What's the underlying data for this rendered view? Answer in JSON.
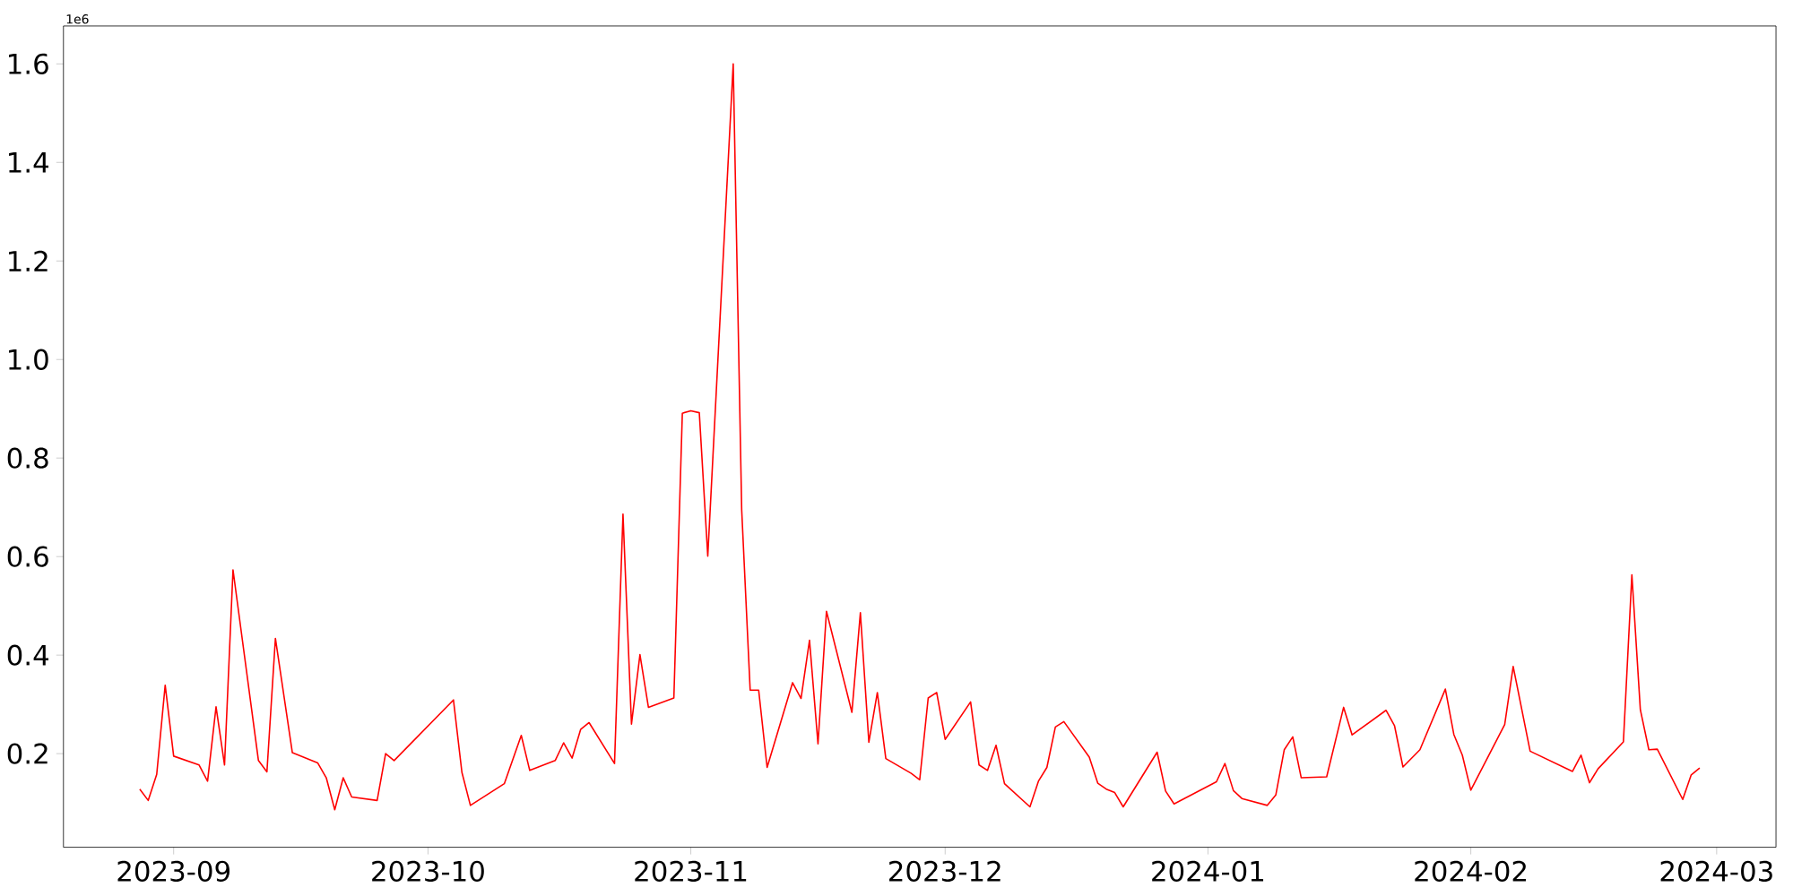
{
  "chart_data": {
    "type": "line",
    "annotations": [
      "1e6"
    ],
    "x": [
      "2023-08-28",
      "2023-08-29",
      "2023-08-30",
      "2023-08-31",
      "2023-09-01",
      "2023-09-04",
      "2023-09-05",
      "2023-09-06",
      "2023-09-07",
      "2023-09-08",
      "2023-09-11",
      "2023-09-12",
      "2023-09-13",
      "2023-09-15",
      "2023-09-18",
      "2023-09-19",
      "2023-09-20",
      "2023-09-21",
      "2023-09-22",
      "2023-09-25",
      "2023-09-26",
      "2023-09-27",
      "2023-10-04",
      "2023-10-05",
      "2023-10-06",
      "2023-10-10",
      "2023-10-12",
      "2023-10-13",
      "2023-10-16",
      "2023-10-17",
      "2023-10-18",
      "2023-10-19",
      "2023-10-20",
      "2023-10-23",
      "2023-10-24",
      "2023-10-25",
      "2023-10-26",
      "2023-10-27",
      "2023-10-30",
      "2023-10-31",
      "2023-11-01",
      "2023-11-02",
      "2023-11-03",
      "2023-11-06",
      "2023-11-07",
      "2023-11-08",
      "2023-11-09",
      "2023-11-10",
      "2023-11-13",
      "2023-11-14",
      "2023-11-15",
      "2023-11-16",
      "2023-11-17",
      "2023-11-20",
      "2023-11-21",
      "2023-11-22",
      "2023-11-23",
      "2023-11-24",
      "2023-11-27",
      "2023-11-28",
      "2023-11-29",
      "2023-11-30",
      "2023-12-01",
      "2023-12-04",
      "2023-12-05",
      "2023-12-06",
      "2023-12-07",
      "2023-12-08",
      "2023-12-11",
      "2023-12-12",
      "2023-12-13",
      "2023-12-14",
      "2023-12-15",
      "2023-12-18",
      "2023-12-19",
      "2023-12-20",
      "2023-12-21",
      "2023-12-22",
      "2023-12-26",
      "2023-12-27",
      "2023-12-28",
      "2024-01-02",
      "2024-01-03",
      "2024-01-04",
      "2024-01-05",
      "2024-01-08",
      "2024-01-09",
      "2024-01-10",
      "2024-01-11",
      "2024-01-12",
      "2024-01-15",
      "2024-01-17",
      "2024-01-18",
      "2024-01-22",
      "2024-01-23",
      "2024-01-24",
      "2024-01-26",
      "2024-01-29",
      "2024-01-30",
      "2024-01-31",
      "2024-02-01",
      "2024-02-05",
      "2024-02-06",
      "2024-02-08",
      "2024-02-13",
      "2024-02-14",
      "2024-02-15",
      "2024-02-16",
      "2024-02-19",
      "2024-02-20",
      "2024-02-21",
      "2024-02-22",
      "2024-02-23",
      "2024-02-26",
      "2024-02-27",
      "2024-02-28"
    ],
    "series": [
      {
        "color": "#ff0000",
        "values": [
          0.128,
          0.105,
          0.158,
          0.339,
          0.195,
          0.177,
          0.144,
          0.295,
          0.177,
          0.573,
          0.186,
          0.163,
          0.434,
          0.202,
          0.181,
          0.151,
          0.086,
          0.151,
          0.112,
          0.105,
          0.2,
          0.186,
          0.309,
          0.162,
          0.095,
          0.139,
          0.237,
          0.166,
          0.186,
          0.222,
          0.191,
          0.249,
          0.263,
          0.18,
          0.686,
          0.26,
          0.401,
          0.294,
          0.313,
          0.891,
          0.896,
          0.892,
          0.601,
          1.6,
          0.695,
          0.329,
          0.329,
          0.172,
          0.344,
          0.312,
          0.43,
          0.22,
          0.489,
          0.284,
          0.486,
          0.223,
          0.324,
          0.19,
          0.16,
          0.147,
          0.313,
          0.324,
          0.229,
          0.305,
          0.177,
          0.166,
          0.217,
          0.139,
          0.092,
          0.144,
          0.172,
          0.254,
          0.265,
          0.193,
          0.14,
          0.128,
          0.121,
          0.092,
          0.203,
          0.124,
          0.098,
          0.143,
          0.18,
          0.125,
          0.109,
          0.095,
          0.116,
          0.208,
          0.234,
          0.151,
          0.153,
          0.294,
          0.238,
          0.288,
          0.257,
          0.173,
          0.208,
          0.331,
          0.239,
          0.197,
          0.126,
          0.259,
          0.377,
          0.205,
          0.164,
          0.197,
          0.141,
          0.169,
          0.224,
          0.563,
          0.289,
          0.208,
          0.209,
          0.107,
          0.157,
          0.171
        ]
      }
    ],
    "xlim": [
      "2023-08-19",
      "2024-03-08"
    ],
    "ylim": [
      0.01,
      1.677
    ],
    "xticks": [
      {
        "value": "2023-09-01",
        "label": "2023-09"
      },
      {
        "value": "2023-10-01",
        "label": "2023-10"
      },
      {
        "value": "2023-11-01",
        "label": "2023-11"
      },
      {
        "value": "2023-12-01",
        "label": "2023-12"
      },
      {
        "value": "2024-01-01",
        "label": "2024-01"
      },
      {
        "value": "2024-02-01",
        "label": "2024-02"
      },
      {
        "value": "2024-03-01",
        "label": "2024-03"
      }
    ],
    "yticks": [
      {
        "value": 0.2,
        "label": "0.2"
      },
      {
        "value": 0.4,
        "label": "0.4"
      },
      {
        "value": 0.6,
        "label": "0.6"
      },
      {
        "value": 0.8,
        "label": "0.8"
      },
      {
        "value": 1.0,
        "label": "1.0"
      },
      {
        "value": 1.2,
        "label": "1.2"
      },
      {
        "value": 1.4,
        "label": "1.4"
      },
      {
        "value": 1.6,
        "label": "1.6"
      }
    ]
  }
}
